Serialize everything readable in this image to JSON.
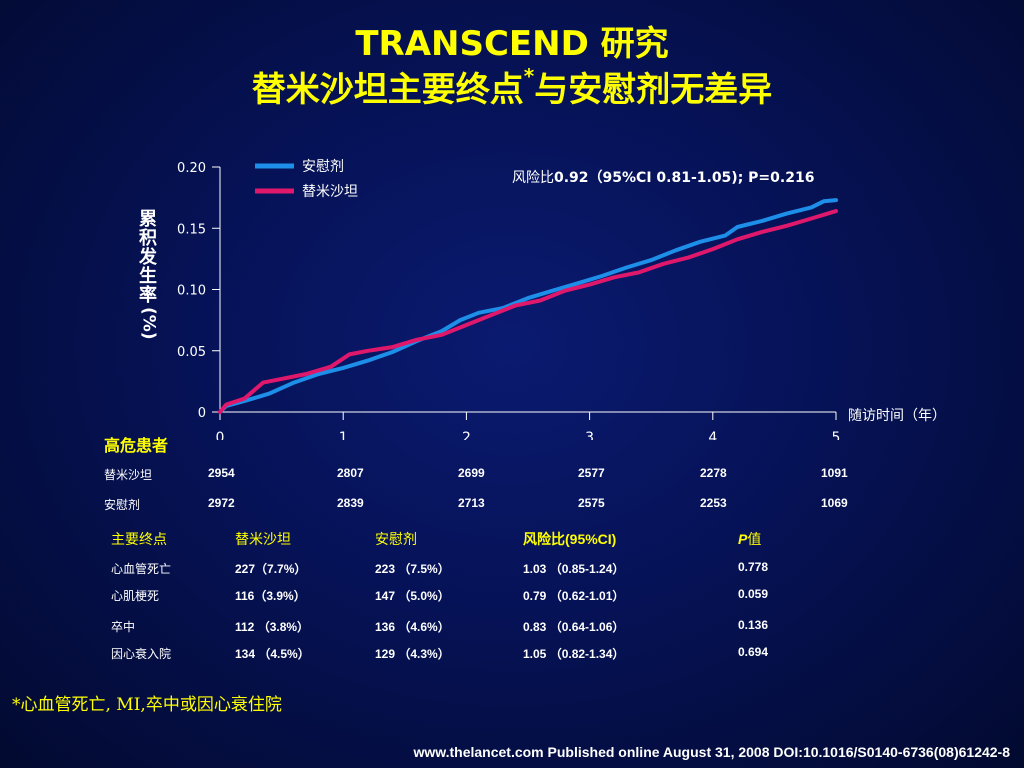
{
  "title_line1": "TRANSCEND 研究",
  "title_line2_main": "替米沙坦主要终点",
  "title_line2_mark": "*",
  "title_line2_rest": "与安慰剂无差异",
  "chart_data": {
    "type": "line",
    "ylabel": "累积发生率(%)",
    "xlabel": "随访时间（年）",
    "x_ticks": [
      "0",
      "1",
      "2",
      "3",
      "4",
      "5"
    ],
    "y_ticks": [
      "0",
      "0.05",
      "0.10",
      "0.15",
      "0.20"
    ],
    "xlim": [
      0,
      5
    ],
    "ylim": [
      0,
      0.2
    ],
    "hr_prefix": "风险比",
    "hr_text": "0.92（95%CI 0.81-1.05); P=0.216",
    "legend_position": "top-left",
    "series": [
      {
        "name": "安慰剂",
        "color": "#1e8fe8",
        "points": [
          [
            0,
            0
          ],
          [
            0.05,
            0.005
          ],
          [
            0.2,
            0.009
          ],
          [
            0.4,
            0.015
          ],
          [
            0.6,
            0.024
          ],
          [
            0.8,
            0.031
          ],
          [
            1.0,
            0.036
          ],
          [
            1.2,
            0.042
          ],
          [
            1.4,
            0.049
          ],
          [
            1.6,
            0.058
          ],
          [
            1.8,
            0.066
          ],
          [
            1.95,
            0.075
          ],
          [
            2.1,
            0.081
          ],
          [
            2.3,
            0.085
          ],
          [
            2.5,
            0.093
          ],
          [
            2.7,
            0.099
          ],
          [
            2.9,
            0.105
          ],
          [
            3.1,
            0.111
          ],
          [
            3.3,
            0.118
          ],
          [
            3.5,
            0.124
          ],
          [
            3.7,
            0.132
          ],
          [
            3.9,
            0.139
          ],
          [
            4.1,
            0.144
          ],
          [
            4.2,
            0.151
          ],
          [
            4.4,
            0.156
          ],
          [
            4.6,
            0.162
          ],
          [
            4.8,
            0.167
          ],
          [
            4.9,
            0.172
          ],
          [
            5.0,
            0.173
          ]
        ]
      },
      {
        "name": "替米沙坦",
        "color": "#e0186c",
        "points": [
          [
            0,
            0
          ],
          [
            0.05,
            0.006
          ],
          [
            0.2,
            0.011
          ],
          [
            0.35,
            0.024
          ],
          [
            0.5,
            0.027
          ],
          [
            0.7,
            0.031
          ],
          [
            0.9,
            0.037
          ],
          [
            1.05,
            0.047
          ],
          [
            1.2,
            0.05
          ],
          [
            1.4,
            0.053
          ],
          [
            1.6,
            0.059
          ],
          [
            1.8,
            0.063
          ],
          [
            2.0,
            0.071
          ],
          [
            2.2,
            0.079
          ],
          [
            2.4,
            0.087
          ],
          [
            2.6,
            0.091
          ],
          [
            2.8,
            0.099
          ],
          [
            3.0,
            0.104
          ],
          [
            3.2,
            0.11
          ],
          [
            3.4,
            0.114
          ],
          [
            3.6,
            0.121
          ],
          [
            3.8,
            0.126
          ],
          [
            4.0,
            0.133
          ],
          [
            4.2,
            0.141
          ],
          [
            4.4,
            0.147
          ],
          [
            4.6,
            0.152
          ],
          [
            4.8,
            0.158
          ],
          [
            5.0,
            0.164
          ]
        ]
      }
    ]
  },
  "risk": {
    "title": "高危患者",
    "rows": [
      {
        "label": "替米沙坦",
        "values": [
          "2954",
          "2807",
          "2699",
          "2577",
          "2278",
          "1091"
        ]
      },
      {
        "label": "安慰剂",
        "values": [
          "2972",
          "2839",
          "2713",
          "2575",
          "2253",
          "1069"
        ]
      }
    ]
  },
  "endpoints": {
    "headers": [
      "主要终点",
      "替米沙坦",
      "安慰剂",
      "风险比(95%CI)",
      "P",
      "值"
    ],
    "rows": [
      [
        "心血管死亡",
        "227（7.7%）",
        "223 （7.5%）",
        "1.03 （0.85-1.24）",
        "0.778"
      ],
      [
        "心肌梗死",
        "116（3.9%）",
        "147 （5.0%）",
        "0.79 （0.62-1.01）",
        "0.059"
      ],
      [
        "卒中",
        "112 （3.8%）",
        "136 （4.6%）",
        "0.83 （0.64-1.06）",
        "0.136"
      ],
      [
        "因心衰入院",
        "134 （4.5%）",
        "129 （4.3%）",
        "1.05 （0.82-1.34）",
        "0.694"
      ]
    ]
  },
  "footnote": "*心血管死亡, MI,卒中或因心衰住院",
  "citation": "www.thelancet.com Published online August 31, 2008 DOI:10.1016/S0140-6736(08)61242-8"
}
